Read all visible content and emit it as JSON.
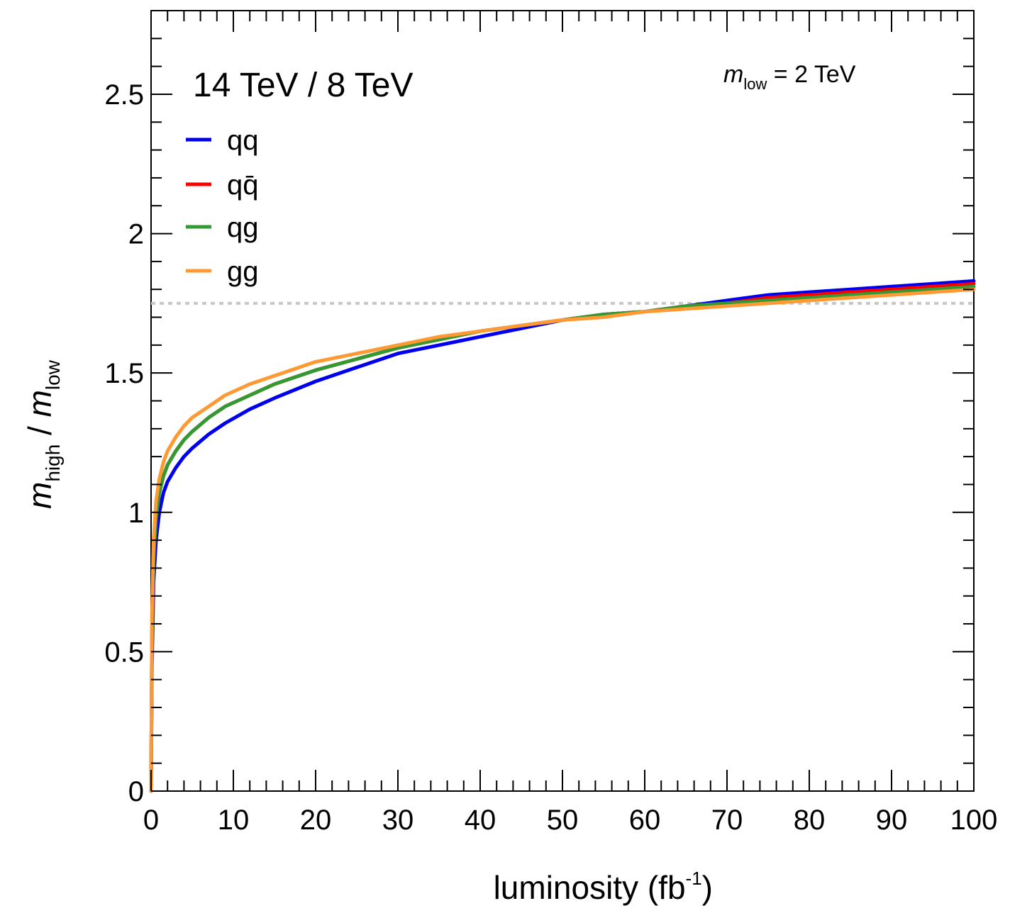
{
  "chart_data": {
    "type": "line",
    "title": "14 TeV / 8 TeV",
    "annotation": {
      "italic": "m",
      "sub": "low",
      "rest": " = 2 TeV"
    },
    "xlabel": {
      "main": "luminosity (fb",
      "sup": "-1",
      "close": ")"
    },
    "ylabel": {
      "m1": "m",
      "sub1": "high",
      "slash": " / ",
      "m2": "m",
      "sub2": "low"
    },
    "xlim": [
      0,
      100
    ],
    "ylim": [
      0,
      2.8
    ],
    "xticks": [
      0,
      10,
      20,
      30,
      40,
      50,
      60,
      70,
      80,
      90,
      100
    ],
    "xtick_labels": [
      "0",
      "10",
      "20",
      "30",
      "40",
      "50",
      "60",
      "70",
      "80",
      "90",
      "100"
    ],
    "yticks": [
      0,
      0.5,
      1,
      1.5,
      2,
      2.5
    ],
    "ytick_labels": [
      "0",
      "0.5",
      "1",
      "1.5",
      "2",
      "2.5"
    ],
    "reference_line": {
      "y": 1.75,
      "style": "dotted",
      "color": "#c8c8c8"
    },
    "legend_position": "top-left",
    "grid": false,
    "series": [
      {
        "name": "qq",
        "color": "#0000ee",
        "x": [
          0,
          0.1,
          0.3,
          0.6,
          1,
          1.5,
          2,
          3,
          4,
          5,
          7,
          9,
          12,
          15,
          20,
          25,
          30,
          35,
          40,
          45,
          50,
          55,
          60,
          65,
          70,
          75,
          80,
          85,
          90,
          95,
          100
        ],
        "y": [
          0,
          0.45,
          0.75,
          0.9,
          1.0,
          1.07,
          1.11,
          1.16,
          1.2,
          1.23,
          1.28,
          1.32,
          1.37,
          1.41,
          1.47,
          1.52,
          1.57,
          1.6,
          1.63,
          1.66,
          1.69,
          1.71,
          1.72,
          1.74,
          1.76,
          1.78,
          1.79,
          1.8,
          1.81,
          1.82,
          1.83
        ]
      },
      {
        "name": "qq̄",
        "color": "#ff0000",
        "x": [
          0,
          0.1,
          0.3,
          0.6,
          1,
          1.5,
          2,
          3,
          4,
          5,
          7,
          9,
          12,
          15,
          20,
          25,
          30,
          35,
          40,
          45,
          50,
          55,
          60,
          65,
          70,
          75,
          80,
          85,
          90,
          95,
          100
        ],
        "y": [
          0,
          0.55,
          0.83,
          0.98,
          1.07,
          1.13,
          1.17,
          1.22,
          1.26,
          1.29,
          1.34,
          1.38,
          1.42,
          1.46,
          1.51,
          1.55,
          1.59,
          1.62,
          1.65,
          1.67,
          1.69,
          1.71,
          1.72,
          1.74,
          1.75,
          1.77,
          1.78,
          1.79,
          1.8,
          1.81,
          1.82
        ]
      },
      {
        "name": "qg",
        "color": "#339933",
        "x": [
          0,
          0.1,
          0.3,
          0.6,
          1,
          1.5,
          2,
          3,
          4,
          5,
          7,
          9,
          12,
          15,
          20,
          25,
          30,
          35,
          40,
          45,
          50,
          55,
          60,
          65,
          70,
          75,
          80,
          85,
          90,
          95,
          100
        ],
        "y": [
          0,
          0.55,
          0.83,
          0.98,
          1.07,
          1.13,
          1.17,
          1.22,
          1.26,
          1.29,
          1.34,
          1.38,
          1.42,
          1.46,
          1.51,
          1.55,
          1.59,
          1.62,
          1.65,
          1.67,
          1.69,
          1.71,
          1.72,
          1.74,
          1.75,
          1.76,
          1.77,
          1.78,
          1.79,
          1.8,
          1.81
        ]
      },
      {
        "name": "gg",
        "color": "#ff9933",
        "x": [
          0,
          0.1,
          0.3,
          0.6,
          1,
          1.5,
          2,
          3,
          4,
          5,
          7,
          9,
          12,
          15,
          20,
          25,
          30,
          35,
          40,
          45,
          50,
          55,
          60,
          65,
          70,
          75,
          80,
          85,
          90,
          95,
          100
        ],
        "y": [
          0,
          0.62,
          0.9,
          1.04,
          1.12,
          1.18,
          1.22,
          1.27,
          1.31,
          1.34,
          1.38,
          1.42,
          1.46,
          1.49,
          1.54,
          1.57,
          1.6,
          1.63,
          1.65,
          1.67,
          1.69,
          1.7,
          1.72,
          1.73,
          1.74,
          1.75,
          1.76,
          1.77,
          1.78,
          1.79,
          1.8
        ]
      }
    ]
  }
}
